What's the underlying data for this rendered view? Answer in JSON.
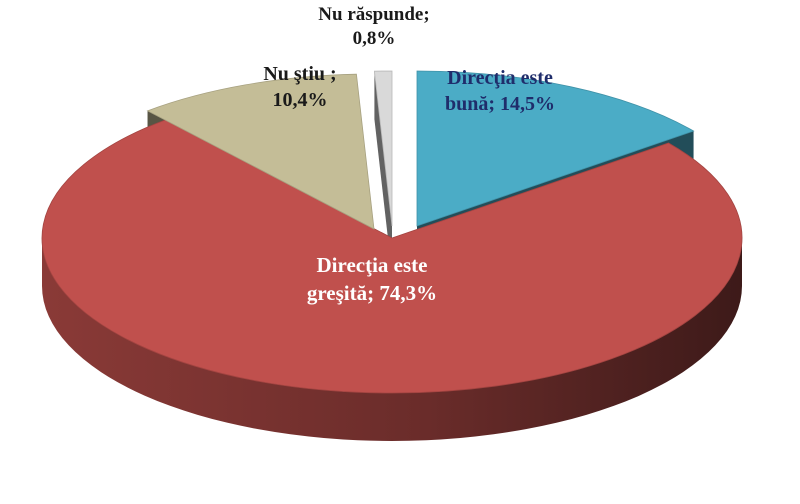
{
  "chart_data": {
    "type": "pie",
    "title": "",
    "style": "3d-exploded",
    "slices": [
      {
        "label_lines": [
          "Direcţia este",
          "bună; 14,5%"
        ],
        "value": 14.5,
        "color": "#4BACC6",
        "label_color": "#1F2D6B"
      },
      {
        "label_lines": [
          "Direcţia este",
          "greşită; 74,3%"
        ],
        "value": 74.3,
        "color": "#C0504D",
        "label_color": "#FFFFFF"
      },
      {
        "label_lines": [
          "Nu ştiu ;",
          "10,4%"
        ],
        "value": 10.4,
        "color": "#C4BD97",
        "label_color": "#1A1A1A"
      },
      {
        "label_lines": [
          "Nu răspunde;",
          "0,8%"
        ],
        "value": 0.8,
        "color": "#D9D9D9",
        "label_color": "#1A1A1A"
      }
    ]
  }
}
